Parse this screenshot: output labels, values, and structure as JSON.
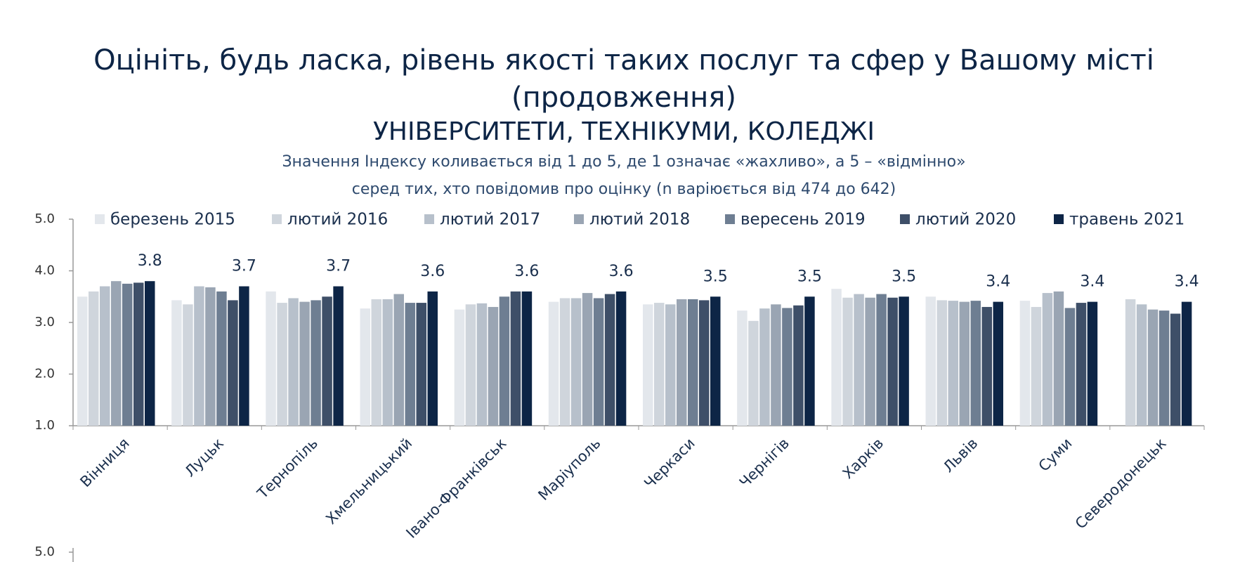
{
  "chart_data": [
    {
      "type": "bar",
      "title": [
        "Оцініть, будь ласка, рівень якості таких послуг та сфер у Вашому місті",
        "(продовження)"
      ],
      "heading": "УНІВЕРСИТЕТИ, ТЕХНІКУМИ, КОЛЕДЖІ",
      "subtitle": [
        "Значення Індексу коливається від 1 до 5, де 1 означає «жахливо», а 5 – «відмінно»",
        "серед тих, хто повідомив про оцінку (n варіюється від 474 до 642)"
      ],
      "categories": [
        "Вінниця",
        "Луцьк",
        "Тернопіль",
        "Хмельницький",
        "Івано-Франківськ",
        "Маріуполь",
        "Черкаси",
        "Чернігів",
        "Харків",
        "Львів",
        "Суми",
        "Северодонецьк"
      ],
      "series": [
        {
          "name": "березень 2015",
          "color": "#e3e7ec",
          "values": [
            3.5,
            3.43,
            3.6,
            3.27,
            3.25,
            3.4,
            3.35,
            3.23,
            3.65,
            3.5,
            3.42,
            null
          ]
        },
        {
          "name": "лютий 2016",
          "color": "#cfd5dc",
          "values": [
            3.6,
            3.35,
            3.38,
            3.45,
            3.35,
            3.47,
            3.38,
            3.03,
            3.48,
            3.43,
            3.3,
            3.45
          ]
        },
        {
          "name": "лютий 2017",
          "color": "#b7c0cb",
          "values": [
            3.7,
            3.7,
            3.47,
            3.45,
            3.37,
            3.47,
            3.35,
            3.27,
            3.55,
            3.42,
            3.57,
            3.35
          ]
        },
        {
          "name": "лютий 2018",
          "color": "#9aa5b3",
          "values": [
            3.8,
            3.68,
            3.4,
            3.55,
            3.3,
            3.57,
            3.45,
            3.35,
            3.48,
            3.4,
            3.6,
            3.25
          ]
        },
        {
          "name": "вересень 2019",
          "color": "#6e7e92",
          "values": [
            3.75,
            3.6,
            3.43,
            3.38,
            3.5,
            3.47,
            3.45,
            3.28,
            3.55,
            3.42,
            3.28,
            3.23
          ]
        },
        {
          "name": "лютий 2020",
          "color": "#3e4f68",
          "values": [
            3.77,
            3.43,
            3.5,
            3.38,
            3.6,
            3.55,
            3.43,
            3.33,
            3.48,
            3.3,
            3.38,
            3.17
          ]
        },
        {
          "name": "травень 2021",
          "color": "#0d2546",
          "values": [
            3.8,
            3.7,
            3.7,
            3.6,
            3.6,
            3.6,
            3.5,
            3.5,
            3.5,
            3.4,
            3.4,
            3.4
          ],
          "data_labels": true
        }
      ],
      "ylim": [
        1,
        5
      ],
      "yticks": [
        {
          "value": 1,
          "label": "1.0"
        },
        {
          "value": 2,
          "label": "2.0"
        },
        {
          "value": 3,
          "label": "3.0"
        },
        {
          "value": 4,
          "label": "4.0"
        },
        {
          "value": 5,
          "label": "5.0"
        }
      ]
    },
    {
      "type": "bar",
      "yticks": [
        {
          "value": 5,
          "label": "5.0"
        }
      ]
    }
  ]
}
